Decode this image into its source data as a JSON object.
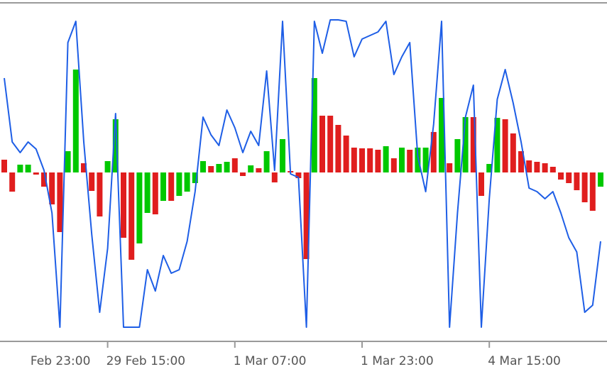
{
  "chart_data": {
    "type": "bar",
    "categories": [
      "Feb 23:00",
      null,
      null,
      null,
      null,
      null,
      null,
      null,
      null,
      null,
      null,
      null,
      null,
      null,
      null,
      null,
      "29 Feb 15:00",
      null,
      null,
      null,
      null,
      null,
      null,
      null,
      null,
      null,
      null,
      null,
      null,
      null,
      null,
      null,
      "1 Mar 07:00",
      null,
      null,
      null,
      null,
      null,
      null,
      null,
      null,
      null,
      null,
      null,
      null,
      null,
      null,
      null,
      "1 Mar 23:00",
      null,
      null,
      null,
      null,
      null,
      null,
      null,
      null,
      null,
      null,
      null,
      null,
      null,
      null,
      null,
      "4 Mar 15:00",
      null,
      null,
      null,
      null,
      null,
      null,
      null,
      null,
      null,
      null,
      null,
      null,
      null,
      null
    ],
    "series": [
      {
        "color": "#00c800",
        "values": [
          null,
          null,
          null,
          null,
          null,
          11,
          11,
          null,
          null,
          null,
          null,
          30,
          145,
          null,
          null,
          null,
          16,
          75,
          null,
          null,
          -100,
          -57,
          null,
          -40,
          null,
          -33,
          -27,
          -15,
          16,
          null,
          12,
          15,
          null,
          null,
          10,
          null,
          30,
          null,
          47,
          null,
          null,
          null,
          133,
          null,
          null,
          null,
          null,
          null,
          null,
          null,
          null,
          37,
          null,
          35,
          null,
          35,
          35,
          null,
          105,
          null,
          47,
          78,
          null,
          null,
          12,
          77,
          null,
          null,
          null,
          null,
          null,
          null,
          null,
          null,
          null,
          null,
          null,
          null,
          -20
        ]
      },
      {
        "color": "#e01e1e",
        "values": [
          null,
          null,
          null,
          18,
          -27,
          null,
          null,
          -3,
          -20,
          -45,
          -84,
          null,
          null,
          13,
          -26,
          -62,
          null,
          null,
          -92,
          -123,
          null,
          null,
          -59,
          null,
          -40,
          null,
          null,
          null,
          null,
          9,
          null,
          null,
          20,
          -5,
          null,
          6,
          null,
          -14,
          null,
          2,
          -8,
          -122,
          null,
          80,
          80,
          67,
          52,
          35,
          34,
          34,
          32,
          null,
          20,
          null,
          32,
          null,
          null,
          57,
          null,
          13,
          null,
          null,
          78,
          -33,
          null,
          null,
          75,
          55,
          30,
          17,
          15,
          13,
          8,
          -10,
          -15,
          -25,
          -42,
          -54,
          null
        ]
      },
      {
        "type": "line",
        "color": "#1e5ee6",
        "values": [
          null,
          null,
          null,
          133,
          43,
          28,
          43,
          33,
          3,
          -57,
          -218,
          183,
          213,
          43,
          -87,
          -197,
          -107,
          83,
          -218,
          -218,
          -218,
          -137,
          -167,
          -117,
          -142,
          -137,
          -97,
          -27,
          78,
          53,
          38,
          88,
          63,
          28,
          58,
          38,
          143,
          3,
          213,
          -2,
          -7,
          -218,
          213,
          168,
          215,
          215,
          213,
          163,
          188,
          193,
          198,
          213,
          138,
          163,
          183,
          23,
          -27,
          68,
          213,
          -218,
          -57,
          78,
          123,
          -218,
          -37,
          103,
          145,
          98,
          43,
          -22,
          -27,
          -37,
          -27,
          -57,
          -92,
          -112,
          -197,
          -187,
          -97
        ]
      }
    ],
    "ylim": [
      -237,
      238
    ]
  }
}
